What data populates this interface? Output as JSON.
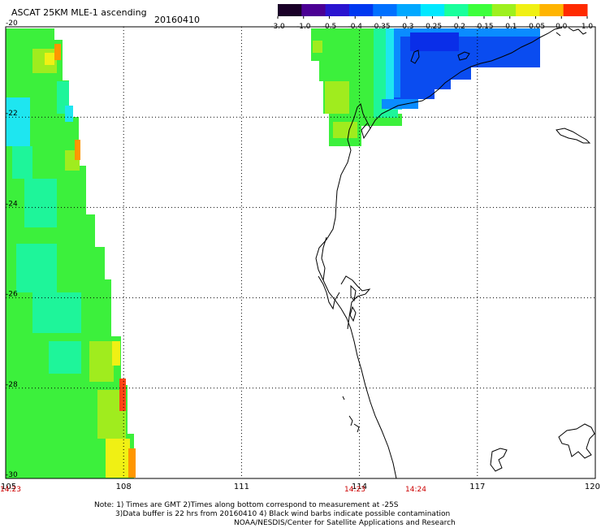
{
  "header": {
    "title": "ASCAT 25KM MLE-1 ascending",
    "date": "20160410"
  },
  "colorbar": {
    "labels": [
      "-3.0",
      "-1.0",
      "-0.5",
      "-0.4",
      "-0.35",
      "-0.3",
      "-0.25",
      "-0.2",
      "-0.15",
      "-0.1",
      "-0.05",
      "0.0",
      "1.0"
    ],
    "colors": [
      "#1a0028",
      "#4b0094",
      "#2a14d0",
      "#0038f0",
      "#0070ff",
      "#00a8ff",
      "#00e8ff",
      "#19ff9c",
      "#3cff3c",
      "#9ef01e",
      "#f0f014",
      "#ffb400",
      "#ff2a00"
    ]
  },
  "map": {
    "lon_ticks": [
      "105",
      "108",
      "111",
      "114",
      "117",
      "120"
    ],
    "lat_ticks": [
      "-20",
      "-22",
      "-24",
      "-26",
      "-28",
      "-30"
    ],
    "lon_range": [
      105,
      120
    ],
    "lat_range": [
      -20,
      -30
    ],
    "grid": true,
    "colors": {
      "land_line": "#000000",
      "grid_line": "#000000",
      "blue_strong": "#0a2ee8",
      "blue": "#0a4cf0",
      "blue_light": "#0a8cff",
      "cyan": "#1ee6f0",
      "green_cyan": "#1ef59a",
      "green": "#3cf03c",
      "yellow_green": "#a0ec1e",
      "yellow": "#f0f014",
      "orange": "#ff9600",
      "red_orange": "#ff4614"
    }
  },
  "times": {
    "left": "14:23",
    "middle": "14:23",
    "right": "14:24",
    "color": "#cc0000"
  },
  "notes": {
    "line1": "Note: 1) Times are GMT 2)Times along bottom correspond to measurement at -25S",
    "line2": "3)Data buffer is 22 hrs from 20160410 4) Black wind barbs indicate possible contamination",
    "line3": "NOAA/NESDIS/Center for Satellite Applications and Research"
  }
}
